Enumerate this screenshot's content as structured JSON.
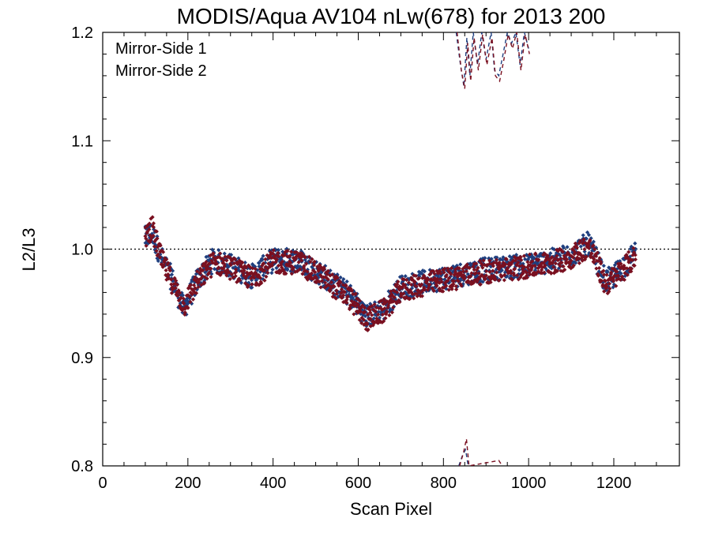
{
  "chart_data": {
    "type": "scatter",
    "title": "MODIS/Aqua AV104 nLw(678) for 2013 200",
    "xlabel": "Scan Pixel",
    "ylabel": "L2/L3",
    "xlim": [
      0,
      1354
    ],
    "ylim": [
      0.8,
      1.2
    ],
    "xticks": [
      "0",
      "200",
      "400",
      "600",
      "800",
      "1000",
      "1200"
    ],
    "yticks": [
      "0.8",
      "0.9",
      "1.0",
      "1.1",
      "1.2"
    ],
    "reference_line": 1.0,
    "legend": {
      "placement": "top-left"
    },
    "series": [
      {
        "name": "Mirror-Side 1",
        "color": "#1f3f7f",
        "marker": "diamond",
        "trend_x": [
          100,
          115,
          140,
          165,
          190,
          220,
          260,
          300,
          350,
          400,
          460,
          520,
          580,
          620,
          660,
          700,
          760,
          820,
          880,
          940,
          1000,
          1060,
          1100,
          1140,
          1160,
          1180,
          1200,
          1225,
          1250
        ],
        "trend_y": [
          1.01,
          1.015,
          0.99,
          0.97,
          0.945,
          0.97,
          0.99,
          0.985,
          0.975,
          0.99,
          0.99,
          0.975,
          0.958,
          0.938,
          0.945,
          0.965,
          0.97,
          0.975,
          0.98,
          0.983,
          0.985,
          0.99,
          0.995,
          1.005,
          0.99,
          0.97,
          0.975,
          0.985,
          0.995
        ],
        "dashed_top_x": [
          830,
          840,
          848,
          855,
          862,
          870,
          880,
          890,
          900,
          912,
          920,
          930,
          940,
          950,
          960,
          970,
          980,
          990,
          1000
        ],
        "dashed_top_y": [
          1.2,
          1.17,
          1.15,
          1.195,
          1.16,
          1.2,
          1.17,
          1.2,
          1.175,
          1.2,
          1.165,
          1.16,
          1.18,
          1.2,
          1.19,
          1.2,
          1.17,
          1.2,
          1.185
        ],
        "dashed_low_x": [
          836,
          845,
          852,
          858
        ],
        "dashed_low_y": [
          0.8,
          0.81,
          0.815,
          0.8
        ]
      },
      {
        "name": "Mirror-Side 2",
        "color": "#7a1020",
        "marker": "diamond",
        "trend_x": [
          100,
          115,
          140,
          165,
          190,
          220,
          260,
          300,
          350,
          400,
          460,
          520,
          580,
          620,
          660,
          700,
          760,
          820,
          880,
          940,
          1000,
          1060,
          1100,
          1140,
          1160,
          1180,
          1200,
          1225,
          1250
        ],
        "trend_y": [
          1.012,
          1.02,
          0.988,
          0.968,
          0.948,
          0.968,
          0.988,
          0.983,
          0.973,
          0.988,
          0.988,
          0.973,
          0.955,
          0.935,
          0.943,
          0.962,
          0.968,
          0.973,
          0.978,
          0.981,
          0.984,
          0.988,
          0.993,
          1.003,
          0.988,
          0.968,
          0.973,
          0.983,
          0.993
        ],
        "dashed_top_x": [
          832,
          842,
          850,
          857,
          864,
          872,
          882,
          892,
          902,
          914,
          922,
          932,
          942,
          952,
          962,
          972,
          982,
          992,
          1002
        ],
        "dashed_top_y": [
          1.2,
          1.165,
          1.148,
          1.19,
          1.155,
          1.195,
          1.165,
          1.198,
          1.17,
          1.195,
          1.16,
          1.155,
          1.175,
          1.198,
          1.185,
          1.2,
          1.165,
          1.198,
          1.18
        ],
        "dashed_low_x": [
          838,
          847,
          854,
          860,
          930,
          938
        ],
        "dashed_low_y": [
          0.8,
          0.812,
          0.825,
          0.8,
          0.805,
          0.8
        ]
      }
    ]
  }
}
